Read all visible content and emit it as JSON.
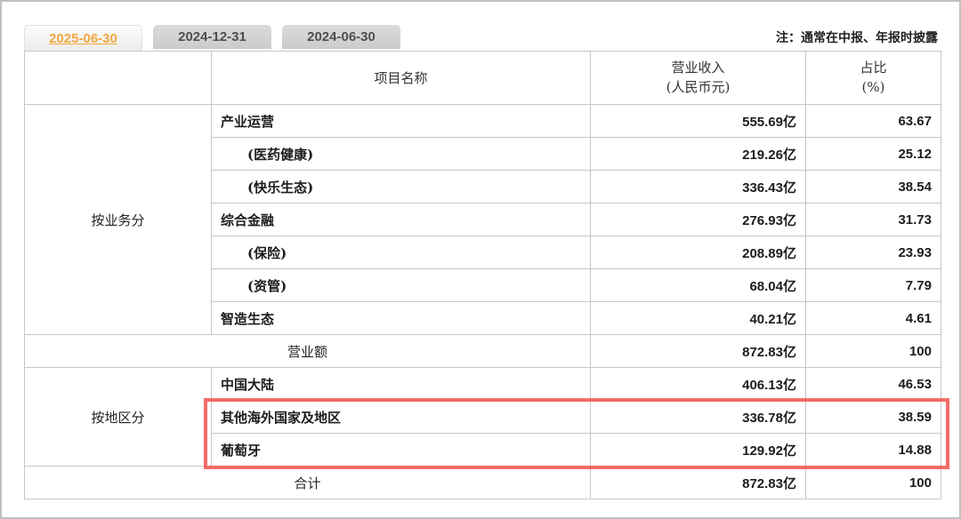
{
  "tabs": [
    {
      "label": "2025-06-30",
      "active": true
    },
    {
      "label": "2024-12-31",
      "active": false
    },
    {
      "label": "2024-06-30",
      "active": false
    }
  ],
  "note": "注：通常在中报、年报时披露",
  "colors": {
    "active_tab_text": "#f2a73d",
    "highlight_border": "#f24d48",
    "grid_line": "#c6c6c6"
  },
  "table": {
    "columns": {
      "item": "项目名称",
      "revenue": "营业收入",
      "revenue_unit": "(人民币元)",
      "share": "占比",
      "share_unit": "(%)"
    },
    "sections": [
      {
        "label": "按业务分",
        "rows": [
          {
            "item": "产业运营",
            "revenue": "555.69亿",
            "share": "63.67",
            "indent": false
          },
          {
            "item": "(医药健康)",
            "revenue": "219.26亿",
            "share": "25.12",
            "indent": true
          },
          {
            "item": "(快乐生态)",
            "revenue": "336.43亿",
            "share": "38.54",
            "indent": true
          },
          {
            "item": "综合金融",
            "revenue": "276.93亿",
            "share": "31.73",
            "indent": false
          },
          {
            "item": "(保险)",
            "revenue": "208.89亿",
            "share": "23.93",
            "indent": true
          },
          {
            "item": "(资管)",
            "revenue": "68.04亿",
            "share": "7.79",
            "indent": true
          },
          {
            "item": "智造生态",
            "revenue": "40.21亿",
            "share": "4.61",
            "indent": false
          }
        ],
        "summary": {
          "item": "营业额",
          "revenue": "872.83亿",
          "share": "100"
        }
      },
      {
        "label": "按地区分",
        "rows": [
          {
            "item": "中国大陆",
            "revenue": "406.13亿",
            "share": "46.53",
            "highlighted": false
          },
          {
            "item": "其他海外国家及地区",
            "revenue": "336.78亿",
            "share": "38.59",
            "highlighted": true
          },
          {
            "item": "葡萄牙",
            "revenue": "129.92亿",
            "share": "14.88",
            "highlighted": true
          }
        ],
        "summary": {
          "item": "合计",
          "revenue": "872.83亿",
          "share": "100"
        }
      }
    ]
  }
}
